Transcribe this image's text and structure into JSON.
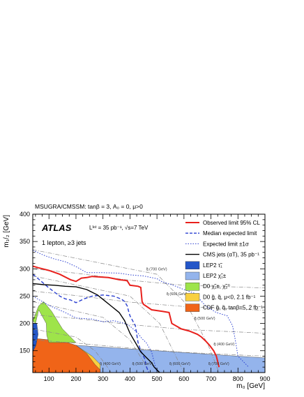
{
  "chart_data": {
    "type": "line",
    "title": "MSUGRA/CMSSM: tanβ = 3, A₀ = 0, μ>0",
    "xlabel": "m₀ [GeV]",
    "ylabel": "m₁/₂ [GeV]",
    "xlim": [
      40,
      900
    ],
    "ylim": [
      110,
      400
    ],
    "x_ticks": [
      100,
      200,
      300,
      400,
      500,
      600,
      700,
      800,
      900
    ],
    "y_ticks": [
      150,
      200,
      250,
      300,
      350,
      400
    ],
    "grid": false,
    "legend_position": "top-right",
    "annotations": {
      "atlas": "ATLAS",
      "lumi": "Lᴵⁿᵗ = 35 pb⁻¹, √s=7 TeV",
      "selection": "1 lepton, ≥3 jets"
    },
    "legend": [
      {
        "label": "Observed limit 95% CL",
        "color": "#e8201c",
        "style": "solid"
      },
      {
        "label": "Median expected limit",
        "color": "#2a3fd0",
        "style": "dashed"
      },
      {
        "label": "Expected limit ±1σ",
        "color": "#2a3fd0",
        "style": "dotted"
      },
      {
        "label": "CMS jets (αT), 35 pb⁻¹",
        "color": "#000000",
        "style": "solid"
      },
      {
        "label": "LEP2 τ̃₁",
        "color": "#2456c8",
        "style": "fill"
      },
      {
        "label": "LEP2 χ̃₁±",
        "color": "#94b4ec",
        "style": "fill"
      },
      {
        "label": "D0 χ̃₁±, χ̃₂⁰",
        "color": "#9ee44a",
        "style": "fill"
      },
      {
        "label": "D0 g̃, q̃, μ<0, 2.1 fb⁻¹",
        "color": "#f8d040",
        "style": "fill"
      },
      {
        "label": "CDF g̃, q̃, tanβ=5, 2 fb⁻¹",
        "color": "#f06418",
        "style": "fill"
      }
    ],
    "series": [
      {
        "name": "Observed limit 95% CL",
        "x": [
          40,
          60,
          100,
          140,
          180,
          200,
          220,
          240,
          260,
          290,
          320,
          360,
          380,
          390,
          400,
          430,
          440,
          445,
          450,
          480,
          520,
          545,
          555,
          590,
          620,
          650,
          665,
          680,
          695,
          710,
          720,
          730
        ],
        "y": [
          305,
          302,
          297,
          290,
          280,
          277,
          283,
          284,
          286,
          285,
          284,
          280,
          279,
          278,
          270,
          268,
          266,
          240,
          235,
          225,
          222,
          220,
          200,
          190,
          186,
          180,
          175,
          168,
          160,
          150,
          140,
          120
        ]
      },
      {
        "name": "Median expected limit",
        "x": [
          40,
          60,
          100,
          140,
          160,
          180,
          200,
          230,
          260,
          300,
          340,
          370,
          380,
          390,
          395,
          400,
          420,
          430,
          440,
          455,
          460,
          470
        ],
        "y": [
          290,
          282,
          265,
          250,
          245,
          243,
          238,
          245,
          250,
          252,
          250,
          244,
          240,
          232,
          222,
          214,
          196,
          165,
          150,
          135,
          122,
          110
        ]
      },
      {
        "name": "Expected limit +1σ",
        "x": [
          40,
          80,
          120,
          160,
          200,
          240,
          300,
          360,
          400,
          450,
          500,
          520,
          560,
          600,
          640,
          680,
          720,
          760,
          780,
          790,
          800,
          830,
          840
        ],
        "y": [
          334,
          325,
          318,
          313,
          304,
          293,
          293,
          292,
          289,
          287,
          282,
          276,
          270,
          262,
          255,
          232,
          220,
          214,
          196,
          170,
          140,
          125,
          120
        ]
      },
      {
        "name": "Expected limit -1σ",
        "x": [
          40,
          100,
          160,
          200,
          260,
          300,
          340,
          380,
          400,
          430,
          440,
          445,
          460,
          480,
          500
        ],
        "y": [
          250,
          233,
          220,
          210,
          208,
          203,
          205,
          200,
          195,
          182,
          175,
          172,
          165,
          148,
          110
        ]
      },
      {
        "name": "CMS jets (αT), 35 pb⁻¹",
        "x": [
          40,
          80,
          120,
          160,
          200,
          240,
          280,
          310,
          330,
          360,
          380,
          400,
          420,
          440,
          460,
          480,
          490,
          500,
          510
        ],
        "y": [
          273,
          271,
          270,
          268,
          267,
          262,
          252,
          240,
          232,
          220,
          205,
          182,
          165,
          148,
          138,
          128,
          120,
          115,
          110
        ]
      }
    ],
    "exclusion_regions": [
      {
        "name": "LEP2 τ̃₁",
        "x": [
          40,
          40,
          55,
          60,
          52,
          40
        ],
        "y": [
          110,
          200,
          200,
          180,
          160,
          148
        ]
      },
      {
        "name": "LEP2 χ̃₁±",
        "x": [
          40,
          200,
          500,
          800,
          900,
          900,
          40
        ],
        "y": [
          165,
          160,
          150,
          140,
          137,
          110,
          110
        ]
      },
      {
        "name": "D0 χ̃₁±, χ̃₂⁰",
        "x": [
          40,
          62,
          80,
          110,
          150,
          200,
          150,
          100,
          92,
          90,
          62,
          50
        ],
        "y": [
          205,
          232,
          240,
          222,
          190,
          165,
          165,
          165,
          178,
          200,
          225,
          200
        ]
      },
      {
        "name": "D0 g̃, q̃, μ<0, 2.1 fb⁻¹",
        "x": [
          100,
          200,
          260,
          290,
          290,
          210,
          150
        ],
        "y": [
          165,
          160,
          140,
          125,
          110,
          110,
          130
        ]
      },
      {
        "name": "CDF g̃, q̃, tanβ=5, 2 fb⁻¹",
        "x": [
          40,
          60,
          100,
          150,
          200,
          240,
          270,
          290,
          290,
          40
        ],
        "y": [
          170,
          172,
          170,
          168,
          160,
          145,
          125,
          115,
          110,
          110
        ]
      }
    ],
    "gluino_contours": [
      {
        "label": "g̃ (700 GeV)",
        "x": [
          40,
          200,
          400,
          600,
          900
        ],
        "y": [
          300,
          292,
          279,
          270,
          265
        ]
      },
      {
        "label": "g̃ (600 GeV)",
        "x": [
          40,
          200,
          400,
          600,
          900
        ],
        "y": [
          259,
          251,
          239,
          231,
          224
        ]
      },
      {
        "label": "g̃ (500 GeV)",
        "x": [
          40,
          200,
          400,
          600,
          900
        ],
        "y": [
          216,
          209,
          198,
          189,
          182
        ]
      },
      {
        "label": "g̃ (400 GeV)",
        "x": [
          40,
          200,
          400,
          600,
          900
        ],
        "y": [
          170,
          164,
          155,
          147,
          140
        ]
      }
    ],
    "squark_contours": [
      {
        "label": "q̃ (700 GeV)",
        "x": [
          40,
          500,
          610,
          690,
          730
        ],
        "y": [
          335,
          290,
          235,
          160,
          110
        ]
      },
      {
        "label": "q̃ (600 GeV)",
        "x": [
          40,
          400,
          510,
          560,
          600
        ],
        "y": [
          287,
          250,
          200,
          150,
          110
        ]
      },
      {
        "label": "q̃ (500 GeV)",
        "x": [
          40,
          300,
          400,
          450,
          470
        ],
        "y": [
          240,
          211,
          170,
          130,
          110
        ]
      },
      {
        "label": "q̃ (400 GeV)",
        "x": [
          40,
          200,
          270,
          310,
          330
        ],
        "y": [
          190,
          175,
          150,
          125,
          110
        ]
      }
    ],
    "contour_labels": [
      {
        "text": "q̃ (700 GeV)",
        "x": 460,
        "y": 297
      },
      {
        "text": "q̃ (600 GeV)",
        "x": 535,
        "y": 252
      },
      {
        "text": "q̃ (500 GeV)",
        "x": 638,
        "y": 207
      },
      {
        "text": "q̃ (400 GeV)",
        "x": 710,
        "y": 160
      },
      {
        "text": "q̃ (400 GeV)",
        "x": 288,
        "y": 124
      },
      {
        "text": "q̃ (500 GeV)",
        "x": 408,
        "y": 124
      },
      {
        "text": "q̃ (600 GeV)",
        "x": 546,
        "y": 124
      },
      {
        "text": "q̃ (700 GeV)",
        "x": 690,
        "y": 124
      }
    ]
  }
}
